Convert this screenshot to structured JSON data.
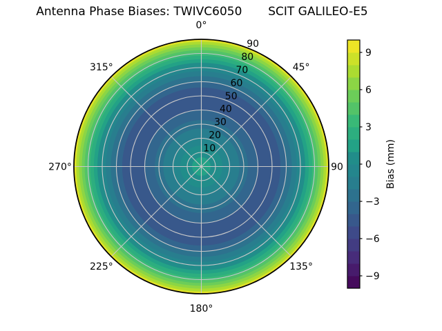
{
  "title": "Antenna Phase Biases: TWIVC6050       SCIT GALILEO-E5",
  "figure_background": "#ffffff",
  "chart_data": {
    "type": "heatmap",
    "projection": "polar",
    "title": "Antenna Phase Biases: TWIVC6050       SCIT GALILEO-E5",
    "grid_on": true,
    "grid_color": "#c9c9c9",
    "spine_color": "#000000",
    "theta_ticks": [
      {
        "angle_deg": 0,
        "label": "0°"
      },
      {
        "angle_deg": 45,
        "label": "45°"
      },
      {
        "angle_deg": 90,
        "label": "90"
      },
      {
        "angle_deg": 135,
        "label": "135°"
      },
      {
        "angle_deg": 180,
        "label": "180°"
      },
      {
        "angle_deg": 225,
        "label": "225°"
      },
      {
        "angle_deg": 270,
        "label": "270°"
      },
      {
        "angle_deg": 315,
        "label": "315°"
      }
    ],
    "r_ticks": [
      10,
      20,
      30,
      40,
      50,
      60,
      70,
      80,
      90
    ],
    "r_tick_labels": [
      "10",
      "20",
      "30",
      "40",
      "50",
      "60",
      "70",
      "80",
      "90"
    ],
    "r_label_angle_deg": 22.5,
    "r_max": 90,
    "azimuthally_symmetric": true,
    "radial_profile": {
      "comment_units": "zenith_r in degrees of zenith angle, bias in mm",
      "zenith_r": [
        0,
        10,
        15,
        20,
        27,
        33,
        40,
        48,
        56,
        60,
        64,
        67.5,
        70.5,
        73.5,
        76,
        78.5,
        80.5,
        82.5,
        84.5,
        86.5,
        88.3,
        89,
        90
      ],
      "bias_mm": [
        1.6,
        0.7,
        0.0,
        -1.0,
        -2.0,
        -3.0,
        -4.0,
        -4.5,
        -4.0,
        -3.0,
        -2.0,
        -1.0,
        0.0,
        1.0,
        2.0,
        3.0,
        4.0,
        5.0,
        6.0,
        7.0,
        8.0,
        9.0,
        10.0
      ]
    },
    "contour_levels": {
      "min": -10,
      "max": 10,
      "step": 1
    },
    "colormap": {
      "name": "viridis",
      "colors20": [
        "#450a5c",
        "#471b6c",
        "#472c7a",
        "#423c82",
        "#3e4a89",
        "#38588b",
        "#32668e",
        "#2d728e",
        "#287e8e",
        "#24868d",
        "#218d8a",
        "#23a286",
        "#2dae7f",
        "#39b977",
        "#53c368",
        "#6ccd59",
        "#8cd545",
        "#acdc31",
        "#cce129",
        "#ede526"
      ]
    },
    "colorbar": {
      "label": "Bias (mm)",
      "range": [
        -10,
        10
      ],
      "tick_values": [
        9,
        6,
        3,
        0,
        -3,
        -6,
        -9
      ],
      "tick_labels": [
        "9",
        "6",
        "3",
        "0",
        "−3",
        "−6",
        "−9"
      ]
    }
  }
}
